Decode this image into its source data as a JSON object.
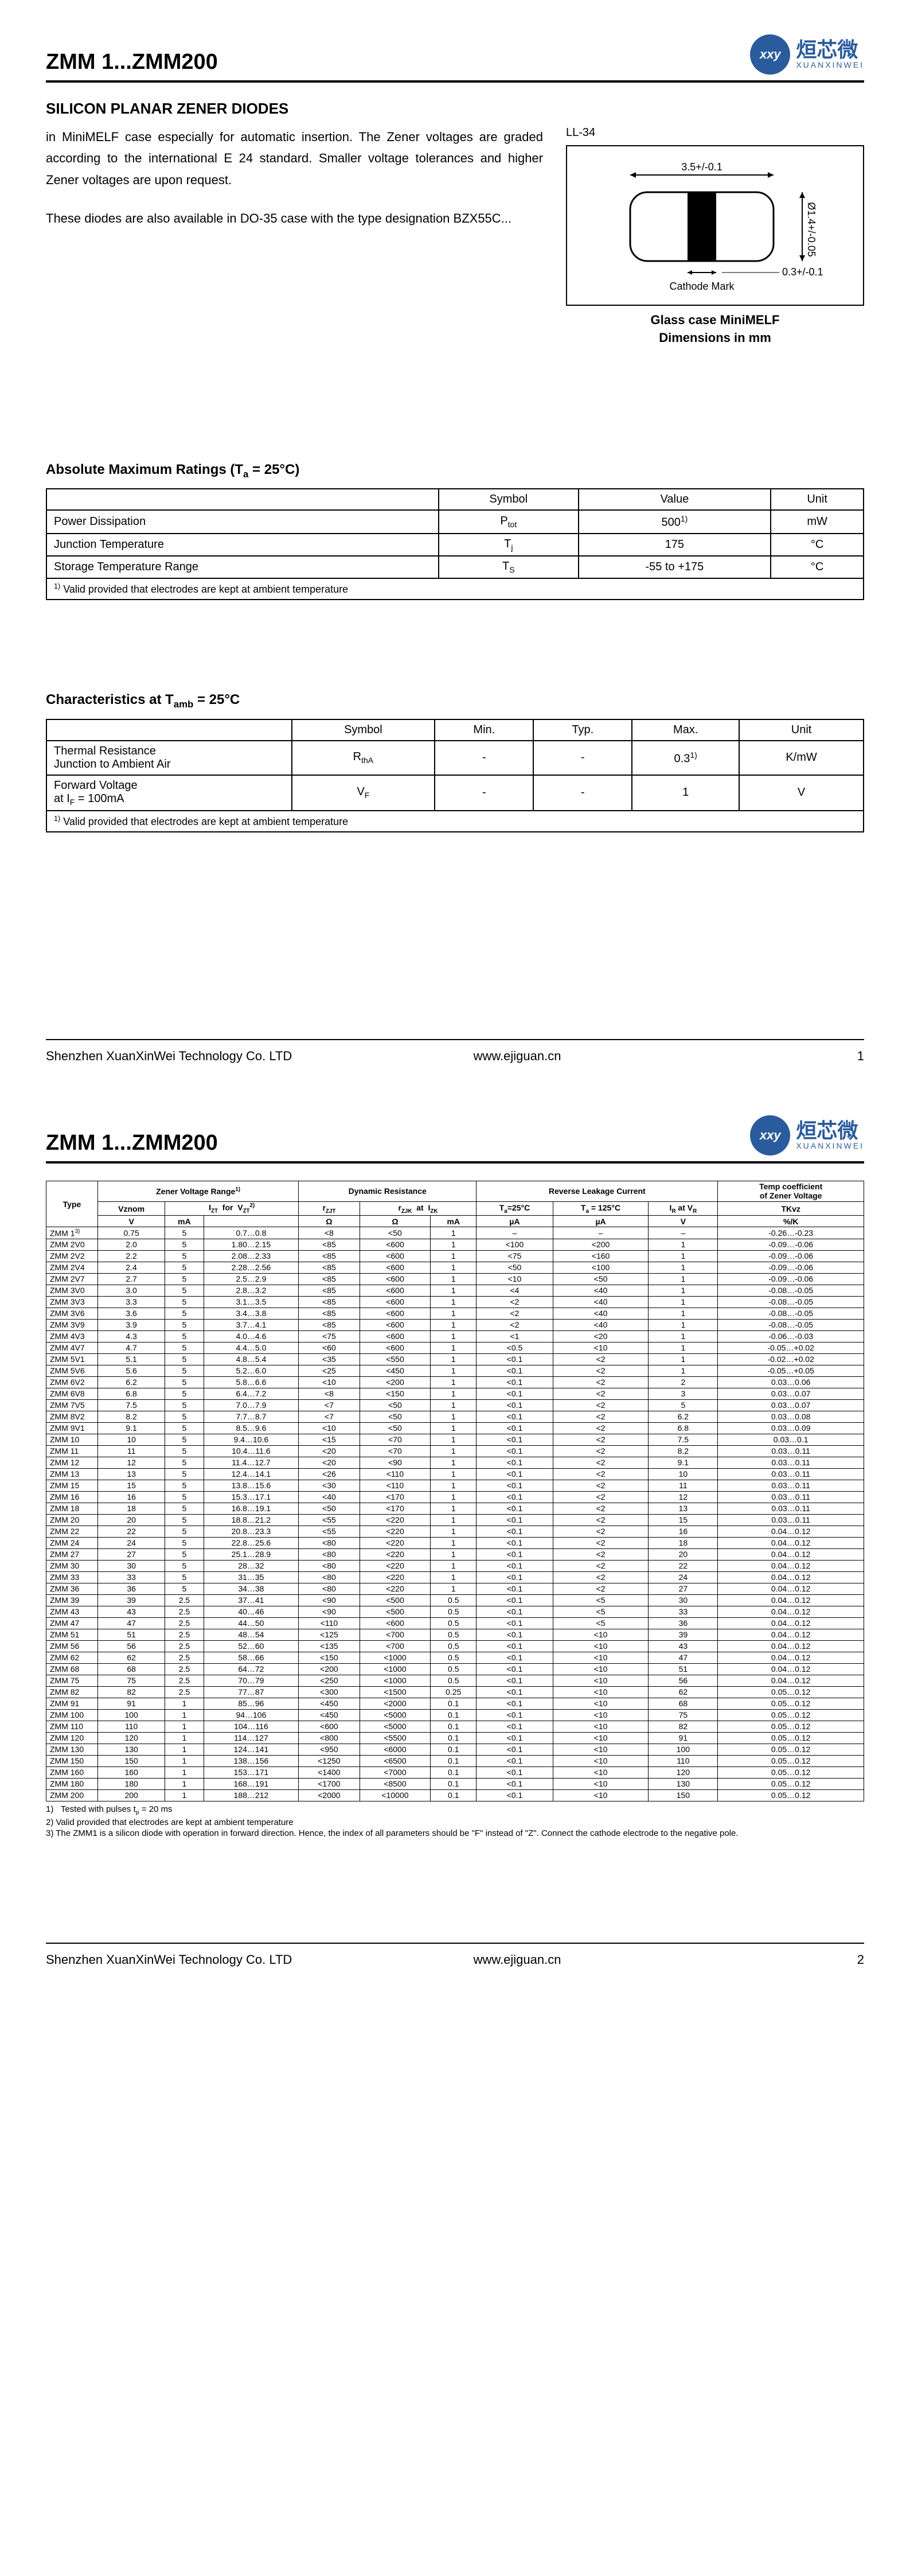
{
  "header": {
    "title": "ZMM 1...ZMM200",
    "logo_xy": "xxy",
    "logo_cn": "烜芯微",
    "logo_en": "XUANXINWEI"
  },
  "page1": {
    "subtitle": "SILICON PLANAR ZENER DIODES",
    "intro1": "in MiniMELF case especially for automatic insertion. The Zener voltages are graded according to the international E 24 standard. Smaller voltage tolerances and higher Zener voltages are upon request.",
    "intro2": "These diodes are also available in DO-35 case with the type designation BZX55C...",
    "diagram": {
      "ll34": "LL-34",
      "dim_w": "3.5+/-0.1",
      "dim_h": "Ø1.4+/-0.05",
      "dim_band": "0.3+/-0.1",
      "cathode": "Cathode Mark",
      "caption1": "Glass case MiniMELF",
      "caption2": "Dimensions in mm"
    },
    "ratings": {
      "title": "Absolute Maximum Ratings (Tₐ = 25°C)",
      "cols": [
        "",
        "Symbol",
        "Value",
        "Unit"
      ],
      "rows": [
        [
          "Power Dissipation",
          "P_tot",
          "500^1)",
          "mW"
        ],
        [
          "Junction Temperature",
          "T_j",
          "175",
          "°C"
        ],
        [
          "Storage Temperature Range",
          "T_S",
          "-55 to +175",
          "°C"
        ]
      ],
      "footnote": "^1) Valid provided that electrodes are kept at ambient temperature"
    },
    "chars": {
      "title": "Characteristics at T_amb = 25°C",
      "cols": [
        "",
        "Symbol",
        "Min.",
        "Typ.",
        "Max.",
        "Unit"
      ],
      "rows": [
        [
          "Thermal Resistance\nJunction to Ambient Air",
          "R_thA",
          "-",
          "-",
          "0.3^1)",
          "K/mW"
        ],
        [
          "Forward Voltage\nat I_F = 100mA",
          "V_F",
          "-",
          "-",
          "1",
          "V"
        ]
      ],
      "footnote": "^1) Valid provided that electrodes are kept at ambient temperature"
    }
  },
  "footer": {
    "company": "Shenzhen XuanXinWei Technology Co. LTD",
    "url": "www.ejiguan.cn",
    "page1": "1",
    "page2": "2"
  },
  "page2": {
    "header_groups": [
      {
        "label": "Type",
        "span": 1,
        "rowspan": 3
      },
      {
        "label": "Zener Voltage Range^1)",
        "span": 3
      },
      {
        "label": "Dynamic Resistance",
        "span": 3
      },
      {
        "label": "Reverse Leakage Current",
        "span": 3
      },
      {
        "label": "Temp coefficient of Zener Voltage",
        "span": 1
      }
    ],
    "sub1": [
      "Vznom",
      "I_ZT for",
      "V_ZT^2)",
      "r_ZJT",
      "r_ZJK at",
      "I_ZK",
      "T_a=25°C",
      "T_a = 125°C",
      "I_R at V_R",
      "TKvz"
    ],
    "sub2": [
      "V",
      "mA",
      "",
      "Ω",
      "Ω",
      "mA",
      "µA",
      "µA",
      "V",
      "%/K"
    ],
    "parts": [
      [
        "ZMM 1^3)",
        "0.75",
        "5",
        "0.7…0.8",
        "<8",
        "<50",
        "1",
        "–",
        "–",
        "–",
        "-0.26…-0.23"
      ],
      [
        "ZMM 2V0",
        "2.0",
        "5",
        "1.80…2.15",
        "<85",
        "<600",
        "1",
        "<100",
        "<200",
        "1",
        "-0.09…-0.06"
      ],
      [
        "ZMM 2V2",
        "2.2",
        "5",
        "2.08…2.33",
        "<85",
        "<600",
        "1",
        "<75",
        "<160",
        "1",
        "-0.09…-0.06"
      ],
      [
        "ZMM 2V4",
        "2.4",
        "5",
        "2.28…2.56",
        "<85",
        "<600",
        "1",
        "<50",
        "<100",
        "1",
        "-0.09…-0.06"
      ],
      [
        "ZMM 2V7",
        "2.7",
        "5",
        "2.5…2.9",
        "<85",
        "<600",
        "1",
        "<10",
        "<50",
        "1",
        "-0.09…-0.06"
      ],
      [
        "ZMM 3V0",
        "3.0",
        "5",
        "2.8…3.2",
        "<85",
        "<600",
        "1",
        "<4",
        "<40",
        "1",
        "-0.08…-0.05"
      ],
      [
        "ZMM 3V3",
        "3.3",
        "5",
        "3.1…3.5",
        "<85",
        "<600",
        "1",
        "<2",
        "<40",
        "1",
        "-0.08…-0.05"
      ],
      [
        "ZMM 3V6",
        "3.6",
        "5",
        "3.4…3.8",
        "<85",
        "<600",
        "1",
        "<2",
        "<40",
        "1",
        "-0.08…-0.05"
      ],
      [
        "ZMM 3V9",
        "3.9",
        "5",
        "3.7…4.1",
        "<85",
        "<600",
        "1",
        "<2",
        "<40",
        "1",
        "-0.08…-0.05"
      ],
      [
        "ZMM 4V3",
        "4.3",
        "5",
        "4.0…4.6",
        "<75",
        "<600",
        "1",
        "<1",
        "<20",
        "1",
        "-0.06…-0.03"
      ],
      [
        "ZMM 4V7",
        "4.7",
        "5",
        "4.4…5.0",
        "<60",
        "<600",
        "1",
        "<0.5",
        "<10",
        "1",
        "-0.05…+0.02"
      ],
      [
        "ZMM 5V1",
        "5.1",
        "5",
        "4.8…5.4",
        "<35",
        "<550",
        "1",
        "<0.1",
        "<2",
        "1",
        "-0.02…+0.02"
      ],
      [
        "ZMM 5V6",
        "5.6",
        "5",
        "5.2…6.0",
        "<25",
        "<450",
        "1",
        "<0.1",
        "<2",
        "1",
        "-0.05…+0.05"
      ],
      [
        "ZMM 6V2",
        "6.2",
        "5",
        "5.8…6.6",
        "<10",
        "<200",
        "1",
        "<0.1",
        "<2",
        "2",
        "0.03…0.06"
      ],
      [
        "ZMM 6V8",
        "6.8",
        "5",
        "6.4…7.2",
        "<8",
        "<150",
        "1",
        "<0.1",
        "<2",
        "3",
        "0.03…0.07"
      ],
      [
        "ZMM 7V5",
        "7.5",
        "5",
        "7.0…7.9",
        "<7",
        "<50",
        "1",
        "<0.1",
        "<2",
        "5",
        "0.03…0.07"
      ],
      [
        "ZMM 8V2",
        "8.2",
        "5",
        "7.7…8.7",
        "<7",
        "<50",
        "1",
        "<0.1",
        "<2",
        "6.2",
        "0.03…0.08"
      ],
      [
        "ZMM 9V1",
        "9.1",
        "5",
        "8.5…9.6",
        "<10",
        "<50",
        "1",
        "<0.1",
        "<2",
        "6.8",
        "0.03…0.09"
      ],
      [
        "ZMM 10",
        "10",
        "5",
        "9.4…10.6",
        "<15",
        "<70",
        "1",
        "<0.1",
        "<2",
        "7.5",
        "0.03…0.1"
      ],
      [
        "ZMM 11",
        "11",
        "5",
        "10.4…11.6",
        "<20",
        "<70",
        "1",
        "<0.1",
        "<2",
        "8.2",
        "0.03…0.11"
      ],
      [
        "ZMM 12",
        "12",
        "5",
        "11.4…12.7",
        "<20",
        "<90",
        "1",
        "<0.1",
        "<2",
        "9.1",
        "0.03…0.11"
      ],
      [
        "ZMM 13",
        "13",
        "5",
        "12.4…14.1",
        "<26",
        "<110",
        "1",
        "<0.1",
        "<2",
        "10",
        "0.03…0.11"
      ],
      [
        "ZMM 15",
        "15",
        "5",
        "13.8…15.6",
        "<30",
        "<110",
        "1",
        "<0.1",
        "<2",
        "11",
        "0.03…0.11"
      ],
      [
        "ZMM 16",
        "16",
        "5",
        "15.3…17.1",
        "<40",
        "<170",
        "1",
        "<0.1",
        "<2",
        "12",
        "0.03…0.11"
      ],
      [
        "ZMM 18",
        "18",
        "5",
        "16.8…19.1",
        "<50",
        "<170",
        "1",
        "<0.1",
        "<2",
        "13",
        "0.03…0.11"
      ],
      [
        "ZMM 20",
        "20",
        "5",
        "18.8…21.2",
        "<55",
        "<220",
        "1",
        "<0.1",
        "<2",
        "15",
        "0.03…0.11"
      ],
      [
        "ZMM 22",
        "22",
        "5",
        "20.8…23.3",
        "<55",
        "<220",
        "1",
        "<0.1",
        "<2",
        "16",
        "0.04…0.12"
      ],
      [
        "ZMM 24",
        "24",
        "5",
        "22.8…25.6",
        "<80",
        "<220",
        "1",
        "<0.1",
        "<2",
        "18",
        "0.04…0.12"
      ],
      [
        "ZMM 27",
        "27",
        "5",
        "25.1…28.9",
        "<80",
        "<220",
        "1",
        "<0.1",
        "<2",
        "20",
        "0.04…0.12"
      ],
      [
        "ZMM 30",
        "30",
        "5",
        "28…32",
        "<80",
        "<220",
        "1",
        "<0.1",
        "<2",
        "22",
        "0.04…0.12"
      ],
      [
        "ZMM 33",
        "33",
        "5",
        "31…35",
        "<80",
        "<220",
        "1",
        "<0.1",
        "<2",
        "24",
        "0.04…0.12"
      ],
      [
        "ZMM 36",
        "36",
        "5",
        "34…38",
        "<80",
        "<220",
        "1",
        "<0.1",
        "<2",
        "27",
        "0.04…0.12"
      ],
      [
        "ZMM 39",
        "39",
        "2.5",
        "37…41",
        "<90",
        "<500",
        "0.5",
        "<0.1",
        "<5",
        "30",
        "0.04…0.12"
      ],
      [
        "ZMM 43",
        "43",
        "2.5",
        "40…46",
        "<90",
        "<500",
        "0.5",
        "<0.1",
        "<5",
        "33",
        "0.04…0.12"
      ],
      [
        "ZMM 47",
        "47",
        "2.5",
        "44…50",
        "<110",
        "<600",
        "0.5",
        "<0.1",
        "<5",
        "36",
        "0.04…0.12"
      ],
      [
        "ZMM 51",
        "51",
        "2.5",
        "48…54",
        "<125",
        "<700",
        "0.5",
        "<0.1",
        "<10",
        "39",
        "0.04…0.12"
      ],
      [
        "ZMM 56",
        "56",
        "2.5",
        "52…60",
        "<135",
        "<700",
        "0.5",
        "<0.1",
        "<10",
        "43",
        "0.04…0.12"
      ],
      [
        "ZMM 62",
        "62",
        "2.5",
        "58…66",
        "<150",
        "<1000",
        "0.5",
        "<0.1",
        "<10",
        "47",
        "0.04…0.12"
      ],
      [
        "ZMM 68",
        "68",
        "2.5",
        "64…72",
        "<200",
        "<1000",
        "0.5",
        "<0.1",
        "<10",
        "51",
        "0.04…0.12"
      ],
      [
        "ZMM 75",
        "75",
        "2.5",
        "70…79",
        "<250",
        "<1000",
        "0.5",
        "<0.1",
        "<10",
        "56",
        "0.04…0.12"
      ],
      [
        "ZMM 82",
        "82",
        "2.5",
        "77…87",
        "<300",
        "<1500",
        "0.25",
        "<0.1",
        "<10",
        "62",
        "0.05…0.12"
      ],
      [
        "ZMM 91",
        "91",
        "1",
        "85…96",
        "<450",
        "<2000",
        "0.1",
        "<0.1",
        "<10",
        "68",
        "0.05…0.12"
      ],
      [
        "ZMM 100",
        "100",
        "1",
        "94…106",
        "<450",
        "<5000",
        "0.1",
        "<0.1",
        "<10",
        "75",
        "0.05…0.12"
      ],
      [
        "ZMM 110",
        "110",
        "1",
        "104…116",
        "<600",
        "<5000",
        "0.1",
        "<0.1",
        "<10",
        "82",
        "0.05…0.12"
      ],
      [
        "ZMM 120",
        "120",
        "1",
        "114…127",
        "<800",
        "<5500",
        "0.1",
        "<0.1",
        "<10",
        "91",
        "0.05…0.12"
      ],
      [
        "ZMM 130",
        "130",
        "1",
        "124…141",
        "<950",
        "<6000",
        "0.1",
        "<0.1",
        "<10",
        "100",
        "0.05…0.12"
      ],
      [
        "ZMM 150",
        "150",
        "1",
        "138…156",
        "<1250",
        "<6500",
        "0.1",
        "<0.1",
        "<10",
        "110",
        "0.05…0.12"
      ],
      [
        "ZMM 160",
        "160",
        "1",
        "153…171",
        "<1400",
        "<7000",
        "0.1",
        "<0.1",
        "<10",
        "120",
        "0.05…0.12"
      ],
      [
        "ZMM 180",
        "180",
        "1",
        "168…191",
        "<1700",
        "<8500",
        "0.1",
        "<0.1",
        "<10",
        "130",
        "0.05…0.12"
      ],
      [
        "ZMM 200",
        "200",
        "1",
        "188…212",
        "<2000",
        "<10000",
        "0.1",
        "<0.1",
        "<10",
        "150",
        "0.05…0.12"
      ]
    ],
    "notes": [
      "1)   Tested with pulses t_p = 20 ms",
      "2)   Valid provided that electrodes are kept at ambient temperature",
      "3)   The ZMM1 is a silicon diode with operation in forward direction. Hence, the index of all parameters should be \"F\" instead of \"Z\". Connect the cathode electrode to the negative pole."
    ]
  }
}
